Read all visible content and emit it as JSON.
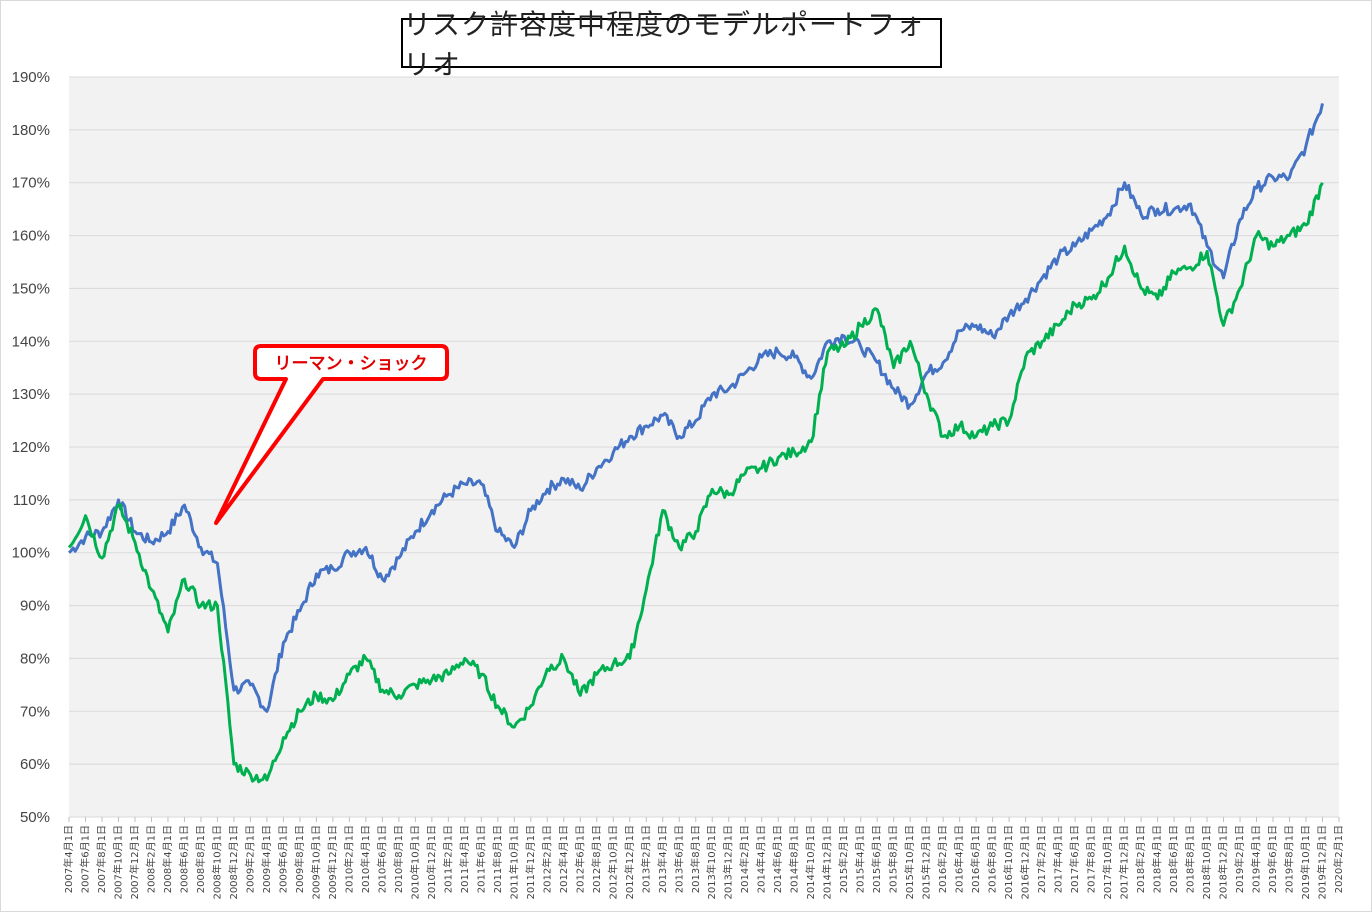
{
  "chart_data": {
    "type": "line",
    "title": "リスク許容度中程度のモデルポートフォリオ",
    "xlabel": "",
    "ylabel": "",
    "ylim": [
      50,
      190
    ],
    "y_ticks": [
      "50%",
      "60%",
      "70%",
      "80%",
      "90%",
      "100%",
      "110%",
      "120%",
      "130%",
      "140%",
      "150%",
      "160%",
      "170%",
      "180%",
      "190%"
    ],
    "x_ticks": [
      "2007年4月1日",
      "2007年6月1日",
      "2007年8月1日",
      "2007年10月1日",
      "2007年12月1日",
      "2008年2月1日",
      "2008年4月1日",
      "2008年6月1日",
      "2008年8月1日",
      "2008年10月1日",
      "2008年12月1日",
      "2009年2月1日",
      "2009年4月1日",
      "2009年6月1日",
      "2009年8月1日",
      "2009年10月1日",
      "2009年12月1日",
      "2010年2月1日",
      "2010年4月1日",
      "2010年6月1日",
      "2010年8月1日",
      "2010年10月1日",
      "2010年12月1日",
      "2011年2月1日",
      "2011年4月1日",
      "2011年6月1日",
      "2011年8月1日",
      "2011年10月1日",
      "2011年12月1日",
      "2012年2月1日",
      "2012年4月1日",
      "2012年6月1日",
      "2012年8月1日",
      "2012年10月1日",
      "2012年12月1日",
      "2013年2月1日",
      "2013年4月1日",
      "2013年6月1日",
      "2013年8月1日",
      "2013年10月1日",
      "2013年12月1日",
      "2014年2月1日",
      "2014年4月1日",
      "2014年6月1日",
      "2014年8月1日",
      "2014年10月1日",
      "2014年12月1日",
      "2015年2月1日",
      "2015年4月1日",
      "2015年6月1日",
      "2015年8月1日",
      "2015年10月1日",
      "2015年12月1日",
      "2016年2月1日",
      "2016年4月1日",
      "2016年6月1日",
      "2016年8月1日",
      "2016年10月1日",
      "2016年12月1日",
      "2017年2月1日",
      "2017年4月1日",
      "2017年6月1日",
      "2017年8月1日",
      "2017年10月1日",
      "2017年12月1日",
      "2018年2月1日",
      "2018年4月1日",
      "2018年6月1日",
      "2018年8月1日",
      "2018年10月1日",
      "2018年12月1日",
      "2019年2月1日",
      "2019年4月1日",
      "2019年6月1日",
      "2019年8月1日",
      "2019年10月1日",
      "2019年12月1日",
      "2020年2月1日"
    ],
    "grid": true,
    "legend": "none",
    "series": [
      {
        "color": "#4472c4",
        "x": [
          "2007-04",
          "2007-06",
          "2007-08",
          "2007-10",
          "2007-12",
          "2008-02",
          "2008-04",
          "2008-06",
          "2008-08",
          "2008-10",
          "2008-12",
          "2009-02",
          "2009-04",
          "2009-06",
          "2009-08",
          "2009-10",
          "2009-12",
          "2010-02",
          "2010-04",
          "2010-06",
          "2010-08",
          "2010-10",
          "2010-12",
          "2011-02",
          "2011-04",
          "2011-06",
          "2011-08",
          "2011-10",
          "2011-12",
          "2012-02",
          "2012-04",
          "2012-06",
          "2012-08",
          "2012-10",
          "2012-12",
          "2013-02",
          "2013-04",
          "2013-06",
          "2013-08",
          "2013-10",
          "2013-12",
          "2014-02",
          "2014-04",
          "2014-06",
          "2014-08",
          "2014-10",
          "2014-12",
          "2015-02",
          "2015-04",
          "2015-06",
          "2015-08",
          "2015-10",
          "2015-12",
          "2016-02",
          "2016-04",
          "2016-06",
          "2016-08",
          "2016-10",
          "2016-12",
          "2017-02",
          "2017-04",
          "2017-06",
          "2017-08",
          "2017-10",
          "2017-12",
          "2018-02",
          "2018-04",
          "2018-06",
          "2018-08",
          "2018-10",
          "2018-12",
          "2019-02",
          "2019-04",
          "2019-06",
          "2019-08",
          "2019-10",
          "2019-12"
        ],
        "values": [
          100,
          103,
          104,
          110,
          104,
          102,
          104,
          109,
          101,
          98,
          74,
          75,
          70,
          83,
          89,
          96,
          97,
          100,
          101,
          95,
          99,
          104,
          108,
          111,
          113,
          113,
          104,
          101,
          108,
          112,
          114,
          112,
          116,
          119,
          122,
          124,
          126,
          122,
          125,
          130,
          131,
          134,
          137,
          138,
          137,
          133,
          140,
          141,
          139,
          136,
          131,
          128,
          134,
          136,
          142,
          143,
          141,
          145,
          148,
          152,
          156,
          158,
          161,
          164,
          170,
          164,
          165,
          165,
          166,
          158,
          152,
          163,
          169,
          171,
          171,
          177,
          185
        ]
      },
      {
        "color": "#00b050",
        "x": [
          "2007-04",
          "2007-06",
          "2007-08",
          "2007-10",
          "2007-12",
          "2008-02",
          "2008-04",
          "2008-06",
          "2008-08",
          "2008-10",
          "2008-12",
          "2009-02",
          "2009-04",
          "2009-06",
          "2009-08",
          "2009-10",
          "2009-12",
          "2010-02",
          "2010-04",
          "2010-06",
          "2010-08",
          "2010-10",
          "2010-12",
          "2011-02",
          "2011-04",
          "2011-06",
          "2011-08",
          "2011-10",
          "2011-12",
          "2012-02",
          "2012-04",
          "2012-06",
          "2012-08",
          "2012-10",
          "2012-12",
          "2013-02",
          "2013-04",
          "2013-06",
          "2013-08",
          "2013-10",
          "2013-12",
          "2014-02",
          "2014-04",
          "2014-06",
          "2014-08",
          "2014-10",
          "2014-12",
          "2015-02",
          "2015-04",
          "2015-06",
          "2015-08",
          "2015-10",
          "2015-12",
          "2016-02",
          "2016-04",
          "2016-06",
          "2016-08",
          "2016-10",
          "2016-12",
          "2017-02",
          "2017-04",
          "2017-06",
          "2017-08",
          "2017-10",
          "2017-12",
          "2018-02",
          "2018-04",
          "2018-06",
          "2018-08",
          "2018-10",
          "2018-12",
          "2019-02",
          "2019-04",
          "2019-06",
          "2019-08",
          "2019-10",
          "2019-12"
        ],
        "values": [
          101,
          107,
          99,
          109,
          102,
          93,
          85,
          95,
          90,
          90,
          60,
          58,
          57,
          65,
          70,
          73,
          72,
          77,
          80,
          74,
          73,
          75,
          76,
          77,
          80,
          77,
          71,
          67,
          71,
          78,
          80,
          73,
          77,
          79,
          80,
          93,
          108,
          101,
          104,
          112,
          111,
          115,
          116,
          118,
          119,
          121,
          138,
          139,
          143,
          146,
          135,
          140,
          130,
          122,
          124,
          122,
          124,
          125,
          137,
          140,
          143,
          147,
          148,
          152,
          158,
          150,
          148,
          153,
          154,
          157,
          143,
          150,
          160,
          158,
          160,
          162,
          170
        ]
      }
    ],
    "annotations": [
      {
        "text": "リーマン・ショック",
        "target": "2008-10"
      }
    ]
  }
}
